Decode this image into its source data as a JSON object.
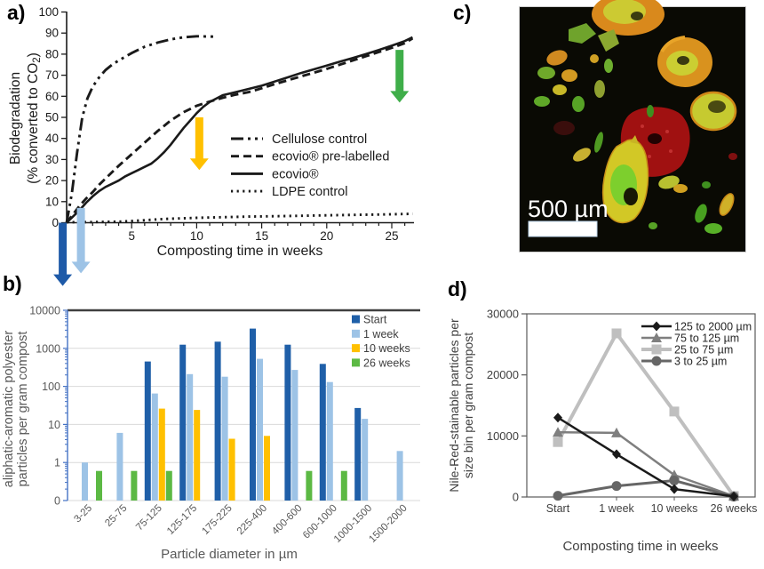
{
  "figure": {
    "panel_labels": {
      "a": "a)",
      "b": "b)",
      "c": "c)",
      "d": "d)"
    },
    "panel_c": {
      "scale_bar_text": "500 µm"
    }
  },
  "colors": {
    "start_blue": "#1F5FA8",
    "week1_blue": "#9DC3E6",
    "weeks10_yellow": "#FFC000",
    "weeks26_green": "#5CB944",
    "arrow_dark_blue": "#1E5AA8",
    "arrow_light_blue": "#9DC3E6",
    "arrow_yellow": "#FFC000",
    "arrow_green": "#3FAE49",
    "gray_text": "#595959"
  },
  "chart_data": [
    {
      "id": "a",
      "type": "line",
      "xlabel": "Composting time in weeks",
      "ylabel_line1": "Biodegradation",
      "ylabel_line2": "(% converted to CO2)",
      "xlim": [
        0,
        26.7
      ],
      "ylim": [
        0,
        100
      ],
      "xticks": [
        5,
        10,
        15,
        20,
        25
      ],
      "yticks": [
        0,
        10,
        20,
        30,
        40,
        50,
        60,
        70,
        80,
        90,
        100
      ],
      "grid": false,
      "legend_position": "inside-right",
      "series": [
        {
          "name": "Cellulose control",
          "style": "dashdot",
          "points": [
            [
              0,
              0
            ],
            [
              0.4,
              14
            ],
            [
              0.8,
              33
            ],
            [
              1.2,
              50
            ],
            [
              1.6,
              59
            ],
            [
              2,
              64.5
            ],
            [
              2.5,
              69
            ],
            [
              3,
              72.5
            ],
            [
              3.5,
              75
            ],
            [
              4,
              77
            ],
            [
              5,
              80.5
            ],
            [
              6,
              83.5
            ],
            [
              7,
              85.5
            ],
            [
              8,
              87
            ],
            [
              9,
              88
            ],
            [
              10,
              88.5
            ],
            [
              11.3,
              88.3
            ]
          ]
        },
        {
          "name": "ecovio® pre-labelled",
          "style": "dashed",
          "points": [
            [
              0,
              0
            ],
            [
              0.5,
              4
            ],
            [
              1,
              8
            ],
            [
              1.5,
              11.5
            ],
            [
              2,
              14.5
            ],
            [
              2.5,
              18
            ],
            [
              3,
              21
            ],
            [
              4,
              27
            ],
            [
              5,
              32.5
            ],
            [
              6,
              38
            ],
            [
              7,
              43.5
            ],
            [
              8,
              48.5
            ],
            [
              9,
              52.5
            ],
            [
              10,
              55.5
            ],
            [
              11,
              57.5
            ],
            [
              12,
              59.3
            ],
            [
              13,
              60.8
            ],
            [
              14,
              62
            ],
            [
              15,
              63.8
            ],
            [
              16,
              65.8
            ],
            [
              17,
              67.6
            ],
            [
              18,
              69.4
            ],
            [
              19,
              71.2
            ],
            [
              20,
              73
            ],
            [
              21,
              75
            ],
            [
              22,
              77
            ],
            [
              23,
              79
            ],
            [
              24,
              81
            ],
            [
              25,
              83
            ],
            [
              26,
              85.2
            ],
            [
              26.6,
              87.5
            ]
          ]
        },
        {
          "name": "ecovio®",
          "style": "solid",
          "points": [
            [
              0,
              0
            ],
            [
              0.5,
              3
            ],
            [
              1,
              6
            ],
            [
              1.5,
              9.5
            ],
            [
              2,
              12.5
            ],
            [
              2.5,
              15
            ],
            [
              3,
              17
            ],
            [
              3.5,
              18.5
            ],
            [
              4,
              20
            ],
            [
              4.5,
              22
            ],
            [
              5,
              23.5
            ],
            [
              5.5,
              25
            ],
            [
              6,
              26.5
            ],
            [
              6.5,
              28
            ],
            [
              7,
              30.5
            ],
            [
              7.5,
              33.5
            ],
            [
              8,
              37
            ],
            [
              8.5,
              41
            ],
            [
              9,
              45
            ],
            [
              9.5,
              48.5
            ],
            [
              10,
              52
            ],
            [
              10.5,
              55
            ],
            [
              11,
              57.3
            ],
            [
              12,
              60.5
            ],
            [
              13,
              62
            ],
            [
              14,
              63.5
            ],
            [
              15,
              65
            ],
            [
              16,
              67
            ],
            [
              17,
              69
            ],
            [
              18,
              71
            ],
            [
              19,
              72.8
            ],
            [
              20,
              74.6
            ],
            [
              21,
              76.4
            ],
            [
              22,
              78.2
            ],
            [
              23,
              80
            ],
            [
              24,
              82
            ],
            [
              25,
              84
            ],
            [
              26,
              86.2
            ],
            [
              26.6,
              88
            ]
          ]
        },
        {
          "name": "LDPE control",
          "style": "dotted",
          "points": [
            [
              0,
              0.2
            ],
            [
              2,
              0.3
            ],
            [
              4,
              0.5
            ],
            [
              5,
              0.8
            ],
            [
              6,
              1.2
            ],
            [
              7,
              1.6
            ],
            [
              8,
              1.9
            ],
            [
              9,
              2.1
            ],
            [
              10,
              2.3
            ],
            [
              12,
              2.6
            ],
            [
              14,
              2.9
            ],
            [
              16,
              3.1
            ],
            [
              18,
              3.3
            ],
            [
              20,
              3.5
            ],
            [
              22,
              3.7
            ],
            [
              24,
              3.9
            ],
            [
              26.6,
              4.2
            ]
          ]
        }
      ],
      "arrows": [
        {
          "name": "dark-blue-arrow",
          "color": "#1E5AA8",
          "week": -0.3,
          "from_pct": 0,
          "to_pct": -30
        },
        {
          "name": "light-blue-arrow",
          "color": "#9DC3E6",
          "week": 1.1,
          "from_pct": 7,
          "to_pct": -24
        },
        {
          "name": "yellow-arrow",
          "color": "#FFC000",
          "week": 10.2,
          "from_pct": 50,
          "to_pct": 25
        },
        {
          "name": "green-arrow",
          "color": "#3FAE49",
          "week": 25.6,
          "from_pct": 82,
          "to_pct": 57
        }
      ]
    },
    {
      "id": "b",
      "type": "bar",
      "log_scale": true,
      "xlabel": "Particle diameter in µm",
      "ylabel_lines": [
        "aliphatic-aromatic polyester",
        "particles per gram compost"
      ],
      "ytick_labels": [
        "10000",
        "1000",
        "100",
        "10",
        "1",
        "0"
      ],
      "ylim_log": [
        0.1,
        10000
      ],
      "categories": [
        "3-25",
        "25-75",
        "75-125",
        "125-175",
        "175-225",
        "225-400",
        "400-600",
        "600-1000",
        "1000-1500",
        "1500-2000"
      ],
      "series": [
        {
          "name": "Start",
          "color": "#1F5FA8",
          "values": [
            null,
            null,
            450,
            1250,
            1500,
            3300,
            1250,
            390,
            27,
            null
          ]
        },
        {
          "name": "1 week",
          "color": "#9DC3E6",
          "values": [
            1,
            6,
            65,
            210,
            180,
            530,
            270,
            130,
            14,
            2
          ]
        },
        {
          "name": "10 weeks",
          "color": "#FFC000",
          "values": [
            null,
            null,
            26,
            24,
            4.2,
            5,
            null,
            null,
            null,
            null
          ]
        },
        {
          "name": "26 weeks",
          "color": "#5CB944",
          "values": [
            0.6,
            0.6,
            0.6,
            null,
            null,
            null,
            0.6,
            0.6,
            null,
            null
          ]
        }
      ]
    },
    {
      "id": "d",
      "type": "line",
      "xlabel": "Composting time in weeks",
      "ylabel_lines": [
        "Nile-Red-stainable particles per",
        "size bin per gram compost"
      ],
      "categories": [
        "Start",
        "1 week",
        "10 weeks",
        "26 weeks"
      ],
      "yticks": [
        0,
        10000,
        20000,
        30000
      ],
      "ylim": [
        0,
        30000
      ],
      "series": [
        {
          "name": "125 to 2000 µm",
          "marker": "diamond",
          "color": "#1a1a1a",
          "width": 2.5,
          "values": [
            13000,
            7000,
            1300,
            100
          ]
        },
        {
          "name": "75 to 125 µm",
          "marker": "triangle",
          "color": "#7f7f7f",
          "width": 2.5,
          "values": [
            10600,
            10500,
            3600,
            150
          ]
        },
        {
          "name": "25 to 75 µm",
          "marker": "square",
          "color": "#bfbfbf",
          "width": 4,
          "values": [
            9000,
            26800,
            14000,
            150
          ]
        },
        {
          "name": "3 to 25 µm",
          "marker": "circle",
          "color": "#666666",
          "width": 3,
          "values": [
            200,
            1800,
            2700,
            50
          ]
        }
      ]
    }
  ]
}
